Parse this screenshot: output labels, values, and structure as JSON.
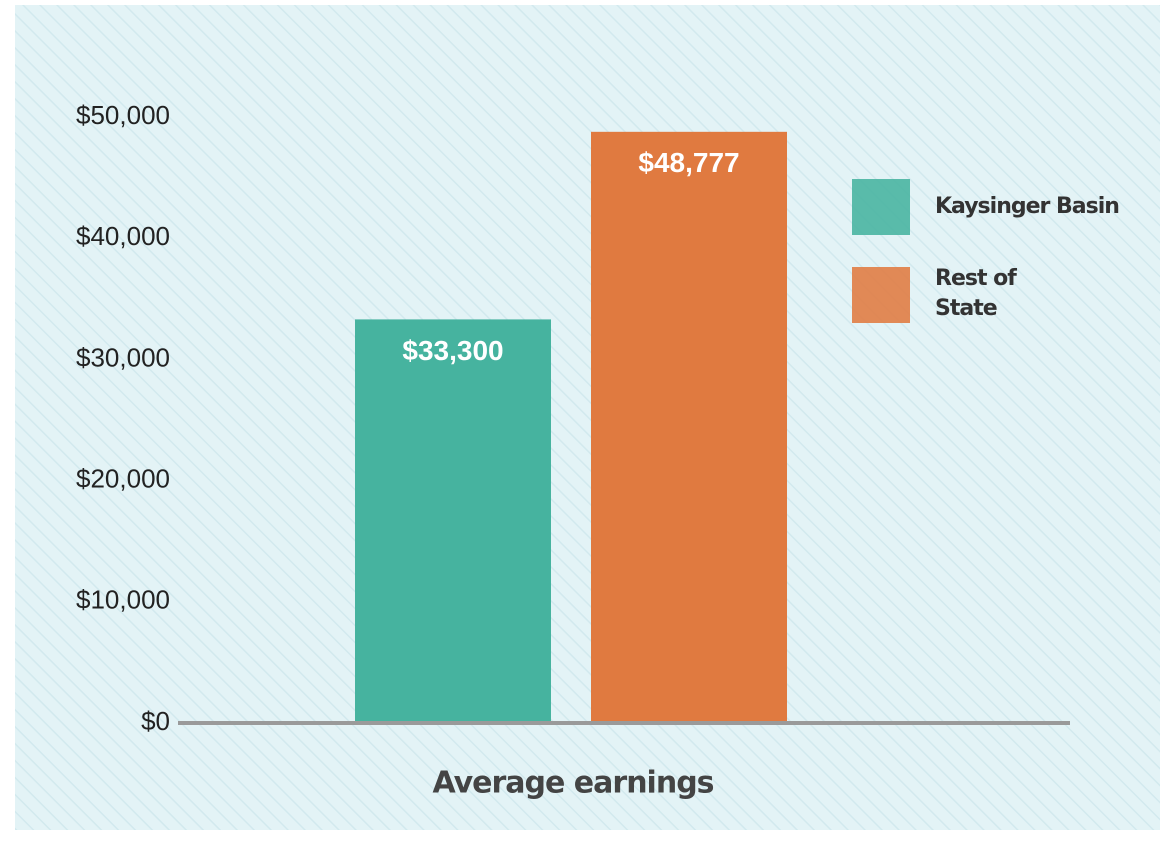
{
  "chart_data": {
    "type": "bar",
    "x_label": "Average earnings",
    "categories": [
      "Average earnings"
    ],
    "series": [
      {
        "name": "Kaysinger Basin",
        "color": "#46b39f",
        "values": [
          33300
        ],
        "value_labels": [
          "$33,300"
        ]
      },
      {
        "name": "Rest of State",
        "color": "#e07a40",
        "values": [
          48777
        ],
        "value_labels": [
          "$48,777"
        ]
      }
    ],
    "ylim": [
      0,
      50000
    ],
    "yticks": [
      {
        "value": 0,
        "label": "$0"
      },
      {
        "value": 10000,
        "label": "$10,000"
      },
      {
        "value": 20000,
        "label": "$20,000"
      },
      {
        "value": 30000,
        "label": "$30,000"
      },
      {
        "value": 40000,
        "label": "$40,000"
      },
      {
        "value": 50000,
        "label": "$50,000"
      }
    ],
    "legend": "right"
  }
}
